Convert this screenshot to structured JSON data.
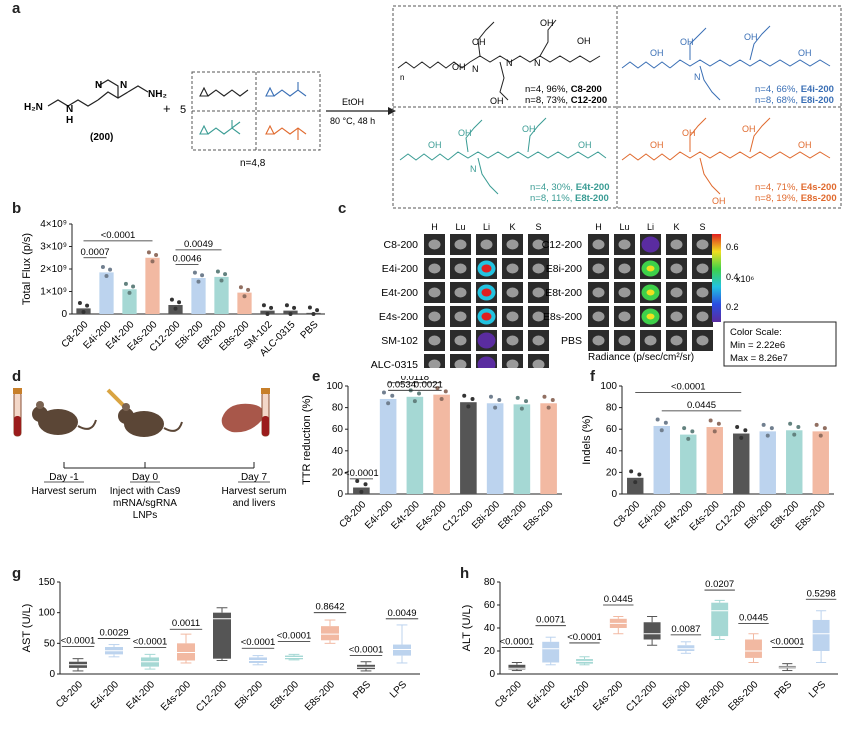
{
  "panel_labels": [
    "a",
    "b",
    "c",
    "d",
    "e",
    "f",
    "g",
    "h"
  ],
  "colors": {
    "c_black": "#555555",
    "i_blue": "#bcd3ee",
    "t_teal": "#a5d8d4",
    "s_orange": "#f2b9a2",
    "grey": "#888888",
    "blue_text": "#3a6fb5",
    "teal_text": "#3a9c94",
    "orange_text": "#e06a2e"
  },
  "panel_a": {
    "amine_label": "(200)",
    "amine_atoms": [
      "H₂N",
      "N",
      "H",
      "N",
      "N",
      "NH₂"
    ],
    "plus": "+",
    "equiv": "5",
    "n_caption": "n=4,8",
    "reagent": "EtOH",
    "conditions": "80 °C, 48 h",
    "atom_oh": "OH",
    "atom_n": "N",
    "sub_n": "n",
    "lipids": [
      {
        "line1": "n=4, 96%,",
        "name1": "C8-200",
        "line2": "n=8, 73%,",
        "name2": "C12-200",
        "color": "#222222"
      },
      {
        "line1": "n=4, 66%,",
        "name1": "E4i-200",
        "line2": "n=8, 68%,",
        "name2": "E8i-200",
        "color": "#3a6fb5"
      },
      {
        "line1": "n=4, 30%,",
        "name1": "E4t-200",
        "line2": "n=8, 11%,",
        "name2": "E8t-200",
        "color": "#3a9c94"
      },
      {
        "line1": "n=4, 71%,",
        "name1": "E4s-200",
        "line2": "n=8, 19%,",
        "name2": "E8s-200",
        "color": "#e06a2e"
      }
    ]
  },
  "panel_c": {
    "organs": [
      "H",
      "Lu",
      "Li",
      "K",
      "S"
    ],
    "left_rows": [
      "C8-200",
      "E4i-200",
      "E4t-200",
      "E4s-200",
      "SM-102",
      "ALC-0315"
    ],
    "right_rows": [
      "C12-200",
      "E8i-200",
      "E8t-200",
      "E8s-200",
      "PBS"
    ],
    "colorbar_ticks": [
      "0.6",
      "0.4",
      "0.2"
    ],
    "colorbar_unit": "x10⁶",
    "radiance_label": "Radiance (p/sec/cm²/sr)",
    "color_scale_title": "Color Scale:",
    "color_scale_min": "Min = 2.22e6",
    "color_scale_max": "Max = 8.26e7"
  },
  "panel_d": {
    "day_m1": "Day -1",
    "day_m1_desc": "Harvest serum",
    "day_0": "Day 0",
    "day_0_desc1": "Inject with Cas9",
    "day_0_desc2": "mRNA/sgRNA",
    "day_0_desc3": "LNPs",
    "day_7": "Day 7",
    "day_7_desc1": "Harvest serum",
    "day_7_desc2": "and livers"
  },
  "chart_data": [
    {
      "panel": "b",
      "type": "bar",
      "ylabel": "Total Flux (p/s)",
      "ytick_labels": [
        "0",
        "1×10⁹",
        "2×10⁹",
        "3×10⁹",
        "4×10⁹"
      ],
      "ylim": [
        0,
        4
      ],
      "categories": [
        "C8-200",
        "E4i-200",
        "E4t-200",
        "E4s-200",
        "C12-200",
        "E8i-200",
        "E8t-200",
        "E8s-200",
        "SM-102",
        "ALC-0315",
        "PBS"
      ],
      "values": [
        0.25,
        1.85,
        1.1,
        2.5,
        0.4,
        1.6,
        1.65,
        0.95,
        0.15,
        0.15,
        0.05
      ],
      "bar_colors": [
        "#555555",
        "#bcd3ee",
        "#a5d8d4",
        "#f2b9a2",
        "#555555",
        "#bcd3ee",
        "#a5d8d4",
        "#f2b9a2",
        "#555555",
        "#555555",
        "#555555"
      ],
      "annotations": [
        {
          "text": "0.0007",
          "from": 0,
          "to": 1,
          "y": 2.5
        },
        {
          "text": "<0.0001",
          "from": 0,
          "to": 3,
          "y": 3.25
        },
        {
          "text": "0.0046",
          "from": 4,
          "to": 5,
          "y": 2.2
        },
        {
          "text": "0.0049",
          "from": 4,
          "to": 6,
          "y": 2.85
        }
      ]
    },
    {
      "panel": "e",
      "type": "bar",
      "ylabel": "TTR reduction (%)",
      "ylim": [
        0,
        100
      ],
      "yticks": [
        0,
        20,
        40,
        60,
        80,
        100
      ],
      "categories": [
        "C8-200",
        "E4i-200",
        "E4t-200",
        "E4s-200",
        "C12-200",
        "E8i-200",
        "E8t-200",
        "E8s-200"
      ],
      "values": [
        6,
        88,
        90,
        92,
        85,
        84,
        83,
        84
      ],
      "bar_colors": [
        "#555555",
        "#bcd3ee",
        "#a5d8d4",
        "#f2b9a2",
        "#555555",
        "#bcd3ee",
        "#a5d8d4",
        "#f2b9a2"
      ],
      "annotations": [
        {
          "text": "<0.0001",
          "from": 0,
          "to": 0,
          "y": 14
        },
        {
          "text": "0.0534",
          "from": 1,
          "to": 2,
          "y": 96
        },
        {
          "text": "0.0118",
          "from": 1,
          "to": 3,
          "y": 103
        },
        {
          "text": "0.0021",
          "from": 2,
          "to": 3,
          "y": 96
        }
      ]
    },
    {
      "panel": "f",
      "type": "bar",
      "ylabel": "Indels (%)",
      "ylim": [
        0,
        100
      ],
      "yticks": [
        0,
        20,
        40,
        60,
        80,
        100
      ],
      "categories": [
        "C8-200",
        "E4i-200",
        "E4t-200",
        "E4s-200",
        "C12-200",
        "E8i-200",
        "E8t-200",
        "E8s-200"
      ],
      "values": [
        15,
        63,
        55,
        62,
        56,
        58,
        59,
        58
      ],
      "bar_colors": [
        "#555555",
        "#bcd3ee",
        "#a5d8d4",
        "#f2b9a2",
        "#555555",
        "#bcd3ee",
        "#a5d8d4",
        "#f2b9a2"
      ],
      "annotations": [
        {
          "text": "<0.0001",
          "from": 0,
          "to": 4,
          "y": 94
        },
        {
          "text": "0.0445",
          "from": 1,
          "to": 4,
          "y": 77
        }
      ]
    },
    {
      "panel": "g",
      "type": "box",
      "ylabel": "AST (U/L)",
      "ylim": [
        0,
        150
      ],
      "yticks": [
        0,
        50,
        100,
        150
      ],
      "categories": [
        "C8-200",
        "E4i-200",
        "E4t-200",
        "E4s-200",
        "C12-200",
        "E8i-200",
        "E8t-200",
        "E8s-200",
        "PBS",
        "LPS"
      ],
      "box_colors": [
        "#555555",
        "#bcd3ee",
        "#a5d8d4",
        "#f2b9a2",
        "#555555",
        "#bcd3ee",
        "#a5d8d4",
        "#f2b9a2",
        "#555555",
        "#bcd3ee"
      ],
      "boxes": [
        [
          5,
          10,
          15,
          20,
          25
        ],
        [
          28,
          32,
          38,
          44,
          48
        ],
        [
          8,
          12,
          20,
          27,
          32
        ],
        [
          18,
          22,
          35,
          50,
          65
        ],
        [
          22,
          25,
          90,
          100,
          108
        ],
        [
          15,
          18,
          22,
          27,
          30
        ],
        [
          23,
          24,
          27,
          30,
          32
        ],
        [
          50,
          55,
          65,
          78,
          88
        ],
        [
          5,
          8,
          11,
          15,
          20
        ],
        [
          18,
          30,
          40,
          48,
          80
        ]
      ],
      "annotations": [
        {
          "text": "<0.0001",
          "idx": 0,
          "y": 45
        },
        {
          "text": "0.0029",
          "idx": 1,
          "y": 58
        },
        {
          "text": "<0.0001",
          "idx": 2,
          "y": 43
        },
        {
          "text": "0.0011",
          "idx": 3,
          "y": 73
        },
        {
          "text": "<0.0001",
          "idx": 5,
          "y": 42
        },
        {
          "text": "<0.0001",
          "idx": 6,
          "y": 53
        },
        {
          "text": "0.8642",
          "idx": 7,
          "y": 100
        },
        {
          "text": "<0.0001",
          "idx": 8,
          "y": 30
        },
        {
          "text": "0.0049",
          "idx": 9,
          "y": 90
        }
      ]
    },
    {
      "panel": "h",
      "type": "box",
      "ylabel": "ALT (U/L)",
      "ylim": [
        0,
        80
      ],
      "yticks": [
        0,
        20,
        40,
        60,
        80
      ],
      "categories": [
        "C8-200",
        "E4i-200",
        "E4t-200",
        "E4s-200",
        "C12-200",
        "E8i-200",
        "E8t-200",
        "E8s-200",
        "PBS",
        "LPS"
      ],
      "box_colors": [
        "#555555",
        "#bcd3ee",
        "#a5d8d4",
        "#f2b9a2",
        "#555555",
        "#bcd3ee",
        "#a5d8d4",
        "#f2b9a2",
        "#555555",
        "#bcd3ee"
      ],
      "boxes": [
        [
          3,
          4,
          5,
          8,
          10
        ],
        [
          8,
          10,
          22,
          28,
          32
        ],
        [
          8,
          9,
          11,
          13,
          15
        ],
        [
          35,
          40,
          44,
          48,
          50
        ],
        [
          25,
          30,
          35,
          45,
          50
        ],
        [
          18,
          20,
          22,
          25,
          28
        ],
        [
          30,
          33,
          55,
          62,
          64
        ],
        [
          10,
          14,
          20,
          30,
          35
        ],
        [
          3,
          5,
          6,
          7,
          9
        ],
        [
          10,
          20,
          35,
          47,
          55
        ]
      ],
      "annotations": [
        {
          "text": "<0.0001",
          "idx": 0,
          "y": 23
        },
        {
          "text": "0.0071",
          "idx": 1,
          "y": 42
        },
        {
          "text": "<0.0001",
          "idx": 2,
          "y": 27
        },
        {
          "text": "0.0445",
          "idx": 3,
          "y": 60
        },
        {
          "text": "0.0087",
          "idx": 5,
          "y": 34
        },
        {
          "text": "0.0207",
          "idx": 6,
          "y": 73
        },
        {
          "text": "0.0445",
          "idx": 7,
          "y": 44
        },
        {
          "text": "<0.0001",
          "idx": 8,
          "y": 23
        },
        {
          "text": "0.5298",
          "idx": 9,
          "y": 65
        }
      ]
    }
  ]
}
